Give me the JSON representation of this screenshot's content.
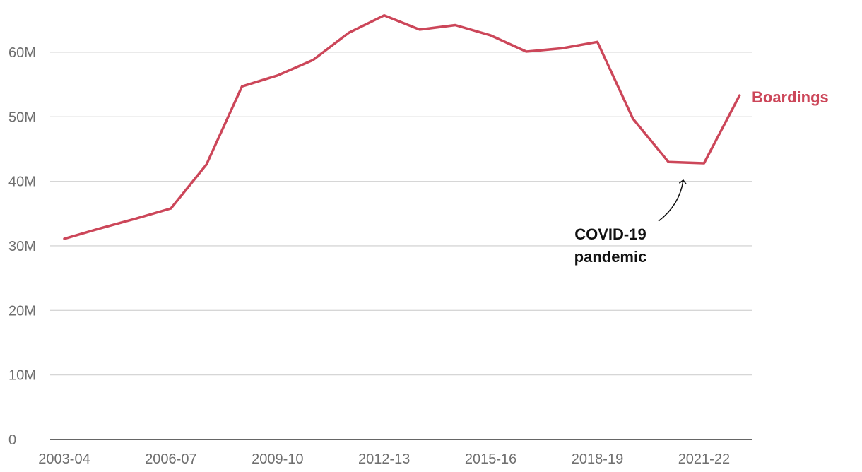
{
  "chart_data": {
    "type": "line",
    "x": [
      "2003-04",
      "2004-05",
      "2005-06",
      "2006-07",
      "2007-08",
      "2008-09",
      "2009-10",
      "2010-11",
      "2011-12",
      "2012-13",
      "2013-14",
      "2014-15",
      "2015-16",
      "2016-17",
      "2017-18",
      "2018-19",
      "2019-20",
      "2020-21",
      "2021-22",
      "2022-23"
    ],
    "series": [
      {
        "name": "Boardings",
        "color": "#cc4659",
        "values": [
          31.1,
          32.7,
          34.2,
          35.8,
          42.6,
          54.7,
          56.4,
          58.8,
          63.0,
          65.7,
          63.5,
          64.2,
          62.6,
          60.1,
          60.6,
          61.6,
          49.7,
          43.0,
          42.8,
          53.3
        ]
      }
    ],
    "y_ticks": [
      {
        "value": 0,
        "label": "0"
      },
      {
        "value": 10,
        "label": "10M"
      },
      {
        "value": 20,
        "label": "20M"
      },
      {
        "value": 30,
        "label": "30M"
      },
      {
        "value": 40,
        "label": "40M"
      },
      {
        "value": 50,
        "label": "50M"
      },
      {
        "value": 60,
        "label": "60M"
      }
    ],
    "x_tick_labels": [
      "2003-04",
      "2006-07",
      "2009-10",
      "2012-13",
      "2015-16",
      "2018-19",
      "2021-22"
    ],
    "ylim": [
      0,
      67
    ],
    "grid": true,
    "annotation": {
      "lines": [
        "COVID-19",
        "pandemic"
      ],
      "target_x": "2020-21"
    },
    "title": "",
    "xlabel": "",
    "ylabel": ""
  }
}
